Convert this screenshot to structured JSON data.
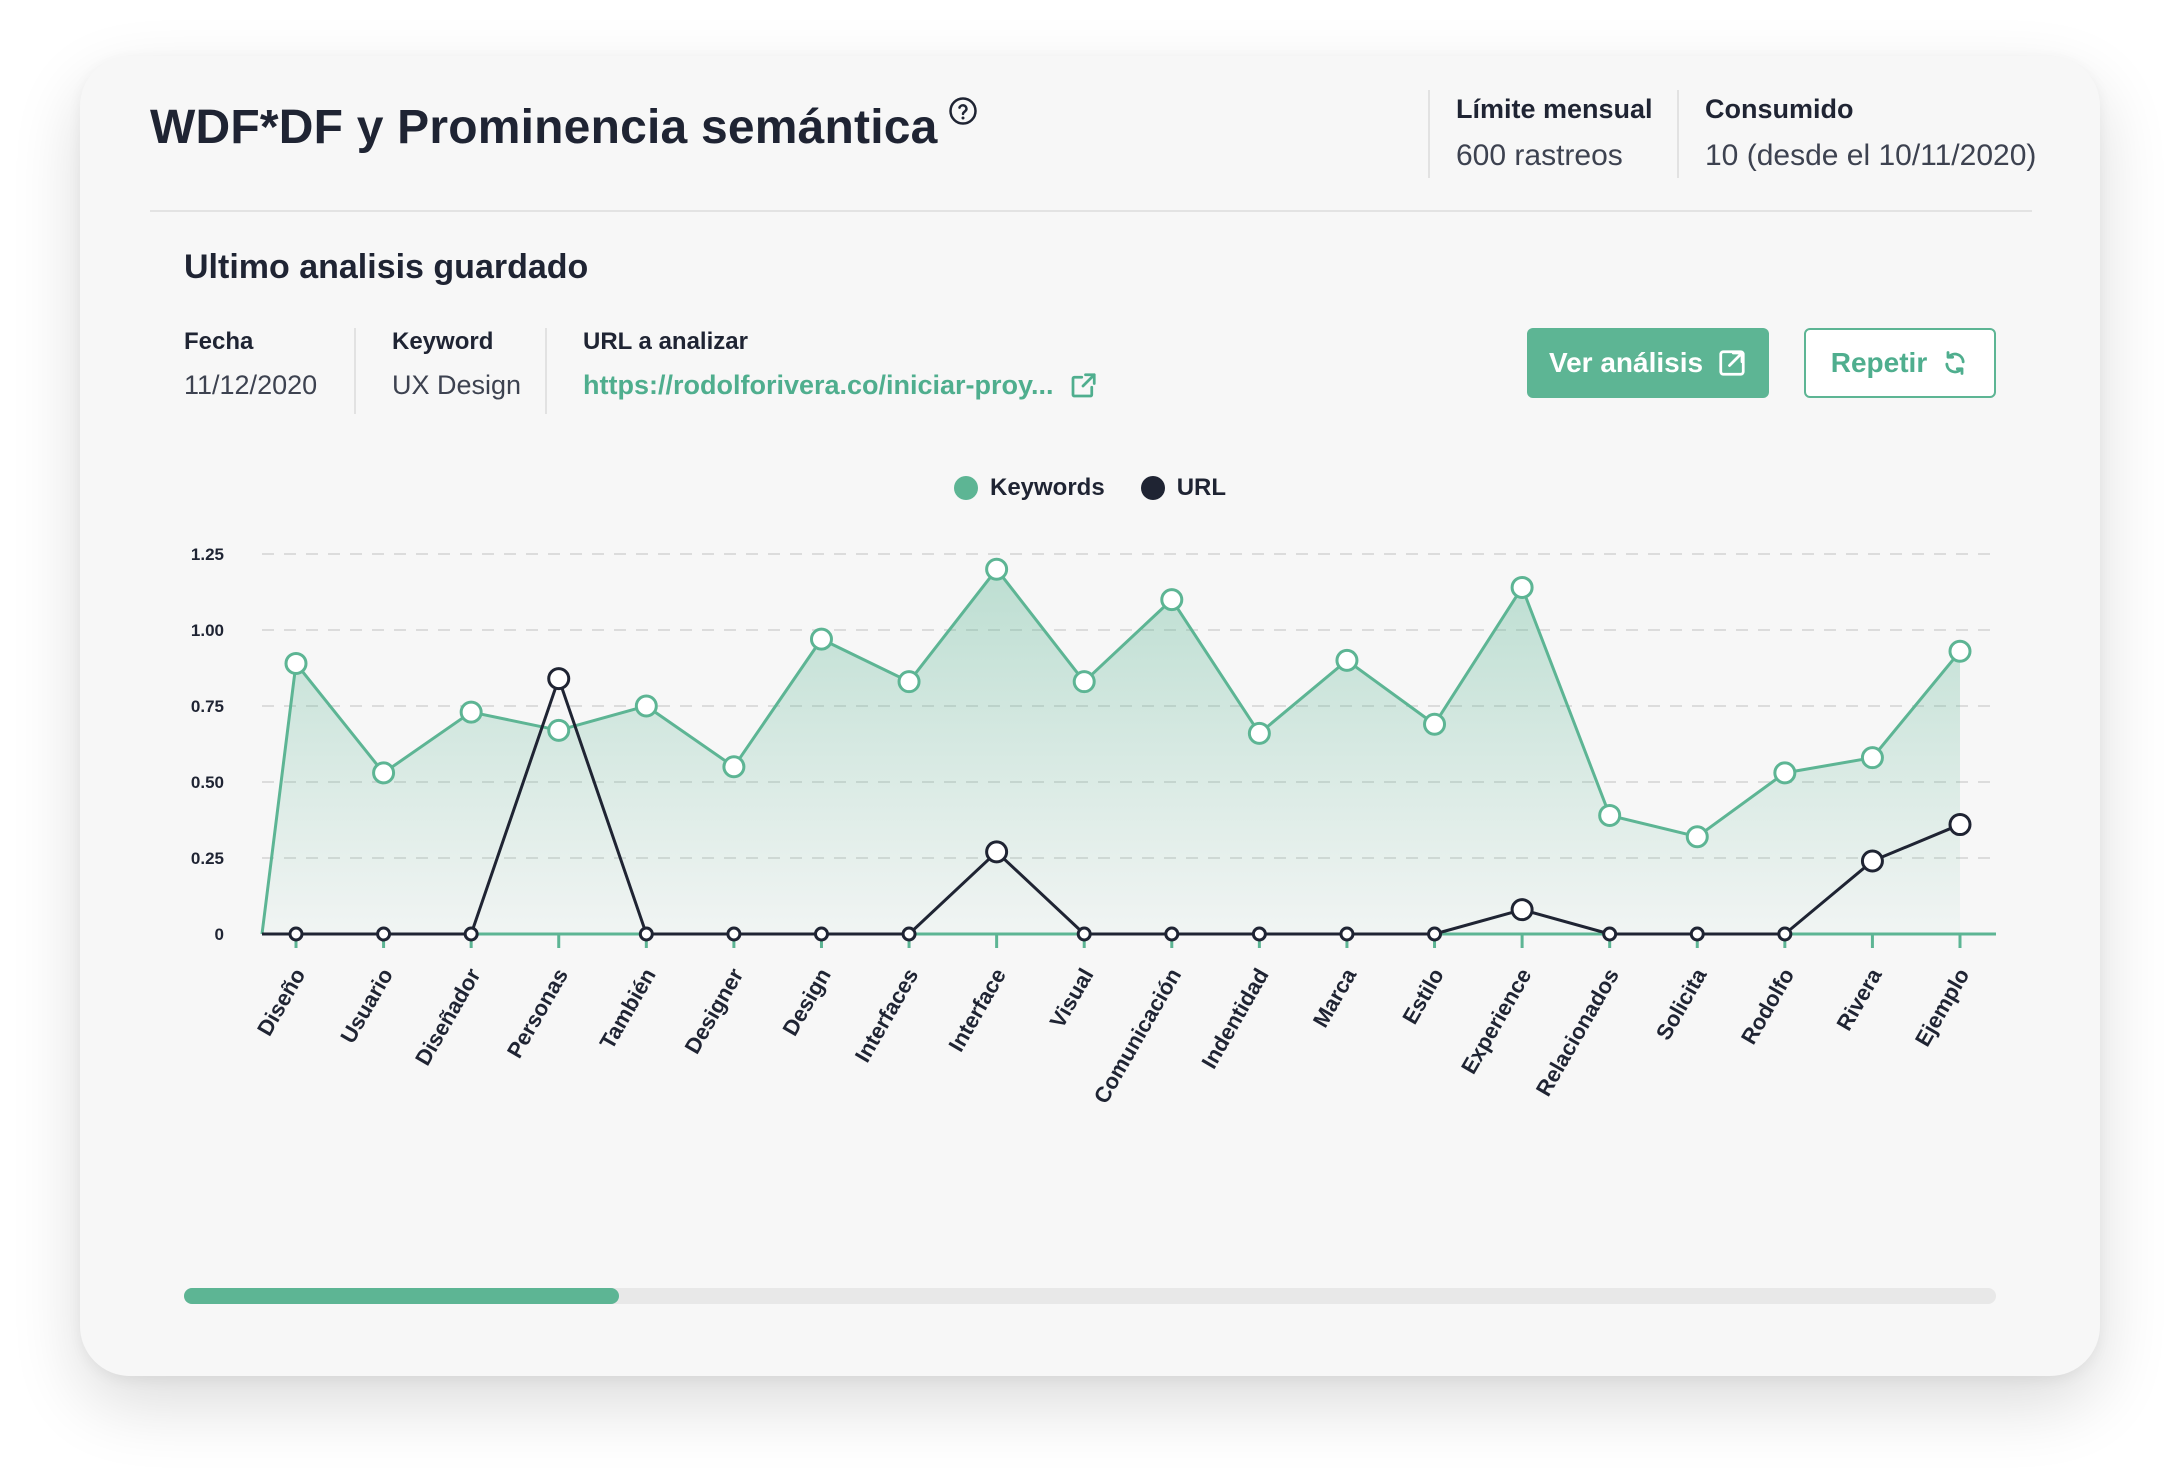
{
  "header": {
    "title": "WDF*DF y Prominencia semántica",
    "help_icon": "help-circle-icon",
    "limit_label": "Límite mensual",
    "limit_value": "600 rastreos",
    "consumed_label": "Consumido",
    "consumed_value": "10 (desde el 10/11/2020)"
  },
  "section": {
    "title": "Ultimo analisis guardado",
    "date_label": "Fecha",
    "date_value": "11/12/2020",
    "keyword_label": "Keyword",
    "keyword_value": "UX Design",
    "url_label": "URL a analizar",
    "url_value": "https://rodolforivera.co/iniciar-proy...",
    "view_button": "Ver análisis",
    "repeat_button": "Repetir"
  },
  "colors": {
    "accent": "#5db594",
    "dark": "#1f2433",
    "card": "#f7f7f7"
  },
  "scrollbar": {
    "position_fraction": 0.24
  },
  "chart_data": {
    "type": "line",
    "categories": [
      "Diseño",
      "Usuario",
      "Diseñador",
      "Personas",
      "También",
      "Designer",
      "Design",
      "Interfaces",
      "Interface",
      "Visual",
      "Comunicación",
      "Indentidad",
      "Marca",
      "Estilo",
      "Experience",
      "Relacionados",
      "Solicita",
      "Rodolfo",
      "Rivera",
      "Ejemplo"
    ],
    "series": [
      {
        "name": "Keywords",
        "color": "#5db594",
        "area": true,
        "values": [
          0.89,
          0.53,
          0.73,
          0.67,
          0.75,
          0.55,
          0.97,
          0.83,
          1.2,
          0.83,
          1.1,
          0.66,
          0.9,
          0.69,
          1.14,
          0.39,
          0.32,
          0.53,
          0.58,
          0.93
        ]
      },
      {
        "name": "URL",
        "color": "#1f2433",
        "area": false,
        "values": [
          0,
          0,
          0,
          0.84,
          0,
          0,
          0,
          0,
          0.27,
          0,
          0,
          0,
          0,
          0,
          0.08,
          0,
          0,
          0,
          0.24,
          0.36
        ]
      }
    ],
    "yticks": [
      "0",
      "0.25",
      "0.50",
      "0.75",
      "1.00",
      "1.25"
    ],
    "ylim": [
      0,
      1.25
    ],
    "grid": true,
    "legend_position": "top-center"
  }
}
